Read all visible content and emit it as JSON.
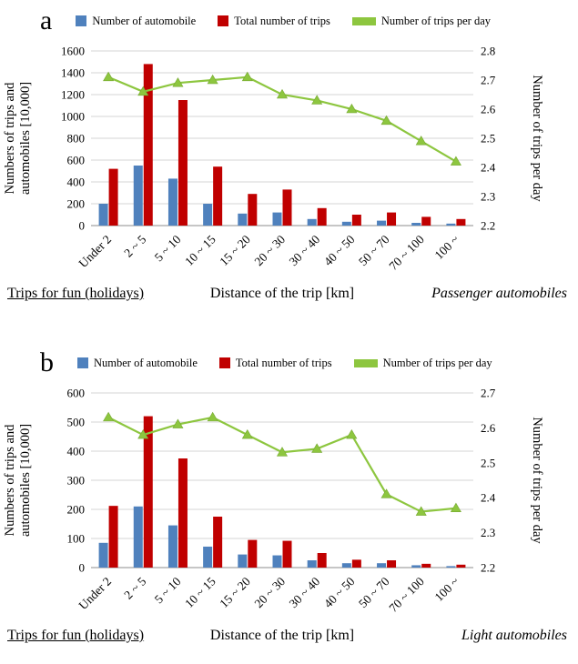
{
  "colors": {
    "automobile_bar": "#4f81bd",
    "trips_bar": "#c00000",
    "trips_per_day_line": "#8dc63f",
    "line_marker_edge": "#76a832",
    "gridline": "#d6d6d6",
    "axis_line": "#8c8c8c",
    "text": "#000000"
  },
  "chart_data": [
    {
      "type": "bar+line",
      "panel": "a",
      "grid": true,
      "legend_position": "top",
      "categories": [
        "Under 2",
        "2 ~ 5",
        "5 ~ 10",
        "10 ~ 15",
        "15 ~ 20",
        "20 ~ 30",
        "30 ~ 40",
        "40 ~ 50",
        "50 ~ 70",
        "70 ~ 100",
        "100 ~"
      ],
      "series": [
        {
          "name": "Number of automobile",
          "type": "bar",
          "axis": "left",
          "color": "#4f81bd",
          "values": [
            200,
            550,
            430,
            200,
            110,
            120,
            60,
            35,
            45,
            25,
            18
          ]
        },
        {
          "name": "Total number of trips",
          "type": "bar",
          "axis": "left",
          "color": "#c00000",
          "values": [
            520,
            1480,
            1150,
            540,
            290,
            330,
            160,
            100,
            120,
            80,
            60
          ]
        },
        {
          "name": "Number of trips per day",
          "type": "line",
          "axis": "right",
          "color": "#8dc63f",
          "values": [
            2.71,
            2.66,
            2.69,
            2.7,
            2.71,
            2.65,
            2.63,
            2.6,
            2.56,
            2.49,
            2.42
          ]
        }
      ],
      "left_axis": {
        "label": "Numbers of trips and automobiles [10,000]",
        "label_lines": [
          "Numbers of trips and",
          "automobiles [10,000]"
        ],
        "min": 0,
        "max": 1600,
        "step": 200
      },
      "right_axis": {
        "label": "Number of trips per day",
        "min": 2.2,
        "max": 2.8,
        "step": 0.1
      },
      "xlabel": "Distance of the trip [km]",
      "footer_left": "Trips for fun (holidays)",
      "footer_right": "Passenger automobiles"
    },
    {
      "type": "bar+line",
      "panel": "b",
      "grid": true,
      "legend_position": "top",
      "categories": [
        "Under 2",
        "2 ~ 5",
        "5 ~ 10",
        "10 ~ 15",
        "15 ~ 20",
        "20 ~ 30",
        "30 ~ 40",
        "40 ~ 50",
        "50 ~ 70",
        "70 ~ 100",
        "100 ~"
      ],
      "series": [
        {
          "name": "Number of automobile",
          "type": "bar",
          "axis": "left",
          "color": "#4f81bd",
          "values": [
            85,
            210,
            145,
            72,
            45,
            42,
            25,
            15,
            15,
            8,
            5
          ]
        },
        {
          "name": "Total number of trips",
          "type": "bar",
          "axis": "left",
          "color": "#c00000",
          "values": [
            212,
            520,
            375,
            175,
            95,
            92,
            50,
            27,
            25,
            13,
            10
          ]
        },
        {
          "name": "Number of trips per day",
          "type": "line",
          "axis": "right",
          "color": "#8dc63f",
          "values": [
            2.63,
            2.58,
            2.61,
            2.63,
            2.58,
            2.53,
            2.54,
            2.58,
            2.41,
            2.36,
            2.37
          ]
        }
      ],
      "left_axis": {
        "label": "Numbers of trips and automobiles [10,000]",
        "label_lines": [
          "Numbers of trips and",
          "automobiles [10,000]"
        ],
        "min": 0,
        "max": 600,
        "step": 100
      },
      "right_axis": {
        "label": "Number of trips per day",
        "min": 2.2,
        "max": 2.7,
        "step": 0.1
      },
      "xlabel": "Distance of the trip [km]",
      "footer_left": "Trips for fun (holidays)",
      "footer_right": "Light automobiles"
    }
  ]
}
